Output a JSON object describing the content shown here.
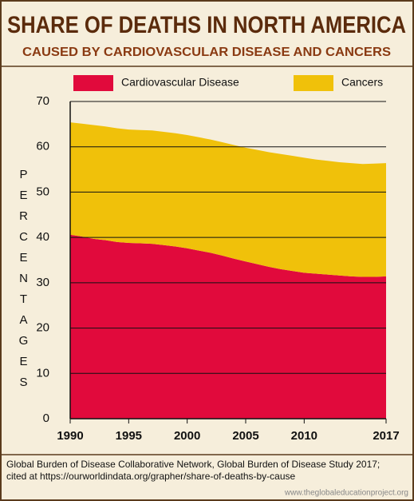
{
  "chart_data": {
    "type": "area",
    "title": "SHARE OF DEATHS IN NORTH AMERICA",
    "subtitle": "CAUSED BY CARDIOVASCULAR DISEASE AND CANCERS",
    "y_label": "PERCENTAGES",
    "source": [
      "Global Burden of Disease Collaborative Network, Global Burden of Disease Study 2017;",
      "cited at https://ourworldindata.org/grapher/share-of-deaths-by-cause"
    ],
    "watermark": "www.theglobaleducationproject.org",
    "stacked": true,
    "x": [
      1990,
      1991,
      1992,
      1993,
      1994,
      1995,
      1996,
      1997,
      1998,
      1999,
      2000,
      2001,
      2002,
      2003,
      2004,
      2005,
      2006,
      2007,
      2008,
      2009,
      2010,
      2011,
      2012,
      2013,
      2014,
      2015,
      2016,
      2017
    ],
    "series": [
      {
        "name": "Cardiovascular Disease",
        "color": "#e10a3c",
        "values": [
          40.6,
          40.2,
          39.7,
          39.4,
          39.0,
          38.8,
          38.7,
          38.6,
          38.3,
          38.0,
          37.6,
          37.1,
          36.6,
          36.0,
          35.3,
          34.7,
          34.1,
          33.5,
          33.0,
          32.6,
          32.2,
          32.0,
          31.8,
          31.6,
          31.4,
          31.3,
          31.3,
          31.4
        ]
      },
      {
        "name": "Cancers",
        "color": "#f0c10a",
        "values": [
          24.8,
          24.9,
          25.1,
          25.1,
          25.1,
          25.0,
          25.0,
          25.0,
          25.0,
          25.0,
          25.0,
          25.0,
          25.0,
          25.0,
          25.1,
          25.1,
          25.2,
          25.3,
          25.4,
          25.4,
          25.4,
          25.2,
          25.1,
          25.0,
          25.0,
          24.9,
          25.0,
          25.0
        ]
      }
    ],
    "xlim": [
      1990,
      2017
    ],
    "xticks": [
      1990,
      1995,
      2000,
      2005,
      2010,
      2017
    ],
    "ylim": [
      0,
      70
    ],
    "yticks": [
      0,
      10,
      20,
      30,
      40,
      50,
      60,
      70
    ],
    "grid": true,
    "legend": "top"
  }
}
